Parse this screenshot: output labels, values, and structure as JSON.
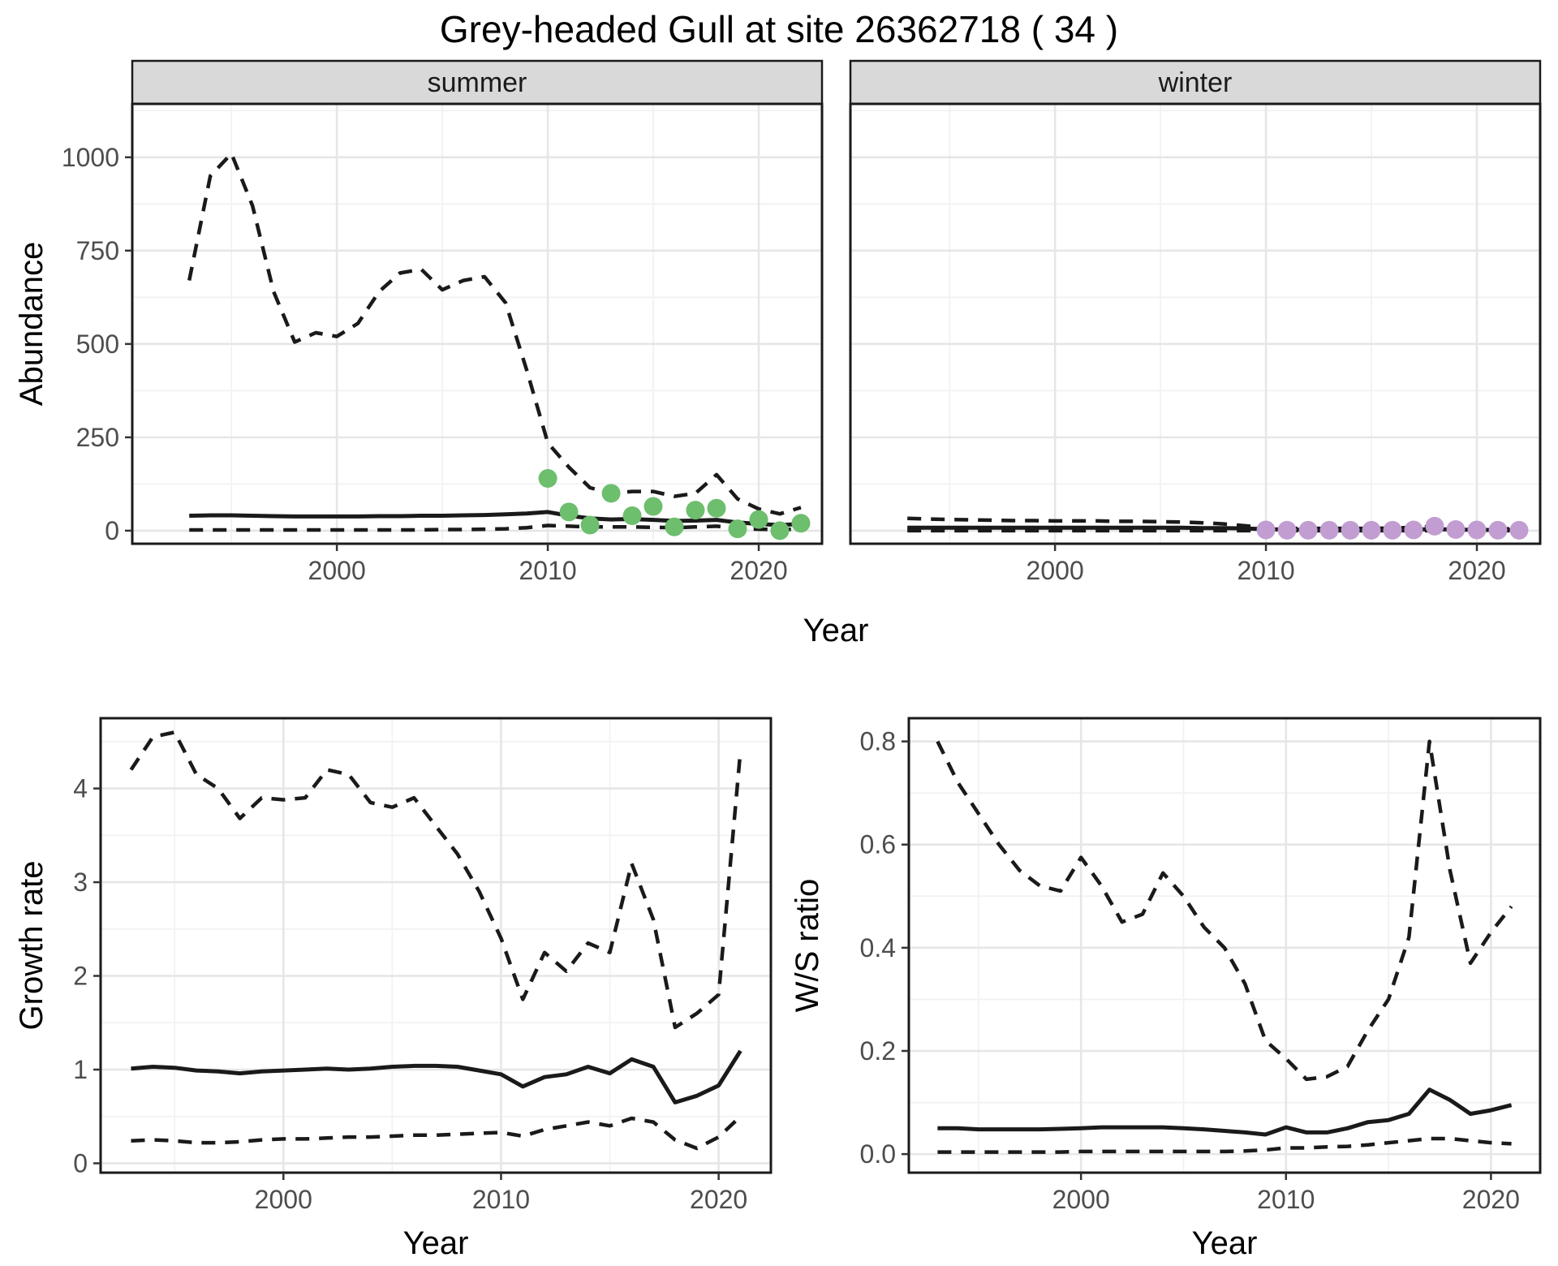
{
  "title": "Grey-headed Gull at site 26362718 ( 34 )",
  "labels": {
    "y_top": "Abundance",
    "x_top": "Year",
    "y_bottom_left": "Growth rate",
    "x_bottom_left": "Year",
    "y_bottom_right": "W/S ratio",
    "x_bottom_right": "Year"
  },
  "facets": {
    "summer": "summer",
    "winter": "winter"
  },
  "colors": {
    "summer_point": "#6dbe6d",
    "winter_point": "#c19dd1",
    "line": "#1a1a1a",
    "strip_fill": "#d9d9d9",
    "grid_major": "#e6e6e6",
    "grid_minor": "#f2f2f2",
    "axis_text": "#4d4d4d",
    "panel_border": "#1a1a1a"
  },
  "chart_data": [
    {
      "id": "abundance-summer",
      "type": "line",
      "facet_label": "summer",
      "ylabel": "Abundance",
      "xlabel": "Year",
      "xlim": [
        1990.3,
        2023.0
      ],
      "ylim": [
        -35,
        1143
      ],
      "xticks": [
        2000,
        2010,
        2020
      ],
      "xtick_labels": [
        "2000",
        "2010",
        "2020"
      ],
      "yticks": [
        0,
        250,
        500,
        750,
        1000
      ],
      "ytick_labels": [
        "0",
        "250",
        "500",
        "750",
        "1000"
      ],
      "x": [
        1993,
        1994,
        1995,
        1996,
        1997,
        1998,
        1999,
        2000,
        2001,
        2002,
        2003,
        2004,
        2005,
        2006,
        2007,
        2008,
        2009,
        2010,
        2011,
        2012,
        2013,
        2014,
        2015,
        2016,
        2017,
        2018,
        2019,
        2020,
        2021,
        2022
      ],
      "series": [
        {
          "name": "upper-ci",
          "style": "dashed",
          "values": [
            670,
            950,
            1010,
            870,
            640,
            505,
            530,
            520,
            555,
            640,
            690,
            700,
            645,
            670,
            680,
            610,
            430,
            235,
            170,
            115,
            100,
            105,
            105,
            92,
            100,
            150,
            85,
            58,
            45,
            62
          ]
        },
        {
          "name": "mean",
          "style": "solid",
          "values": [
            40,
            41,
            41,
            40,
            39,
            38,
            38,
            38,
            38,
            39,
            39,
            40,
            40,
            41,
            42,
            44,
            46,
            50,
            40,
            33,
            30,
            31,
            29,
            26,
            27,
            29,
            22,
            18,
            15,
            18
          ]
        },
        {
          "name": "lower-ci",
          "style": "dashed",
          "values": [
            2,
            2,
            2,
            2,
            2,
            2,
            2,
            2,
            2,
            2,
            2,
            2,
            3,
            3,
            4,
            5,
            8,
            14,
            12,
            10,
            10,
            10,
            9,
            8,
            10,
            12,
            6,
            4,
            3,
            4
          ]
        }
      ],
      "points": {
        "name": "observed-counts",
        "color_key": "summer_point",
        "x": [
          2010,
          2011,
          2012,
          2013,
          2014,
          2015,
          2016,
          2017,
          2018,
          2019,
          2020,
          2021,
          2022
        ],
        "values": [
          140,
          50,
          15,
          100,
          40,
          65,
          10,
          55,
          60,
          5,
          30,
          0,
          20
        ]
      }
    },
    {
      "id": "abundance-winter",
      "type": "line",
      "facet_label": "winter",
      "ylabel": "Abundance",
      "xlabel": "Year",
      "xlim": [
        1990.3,
        2023.0
      ],
      "ylim": [
        -35,
        1143
      ],
      "xticks": [
        2000,
        2010,
        2020
      ],
      "xtick_labels": [
        "2000",
        "2010",
        "2020"
      ],
      "yticks": [
        0,
        250,
        500,
        750,
        1000
      ],
      "ytick_labels": [
        "0",
        "250",
        "500",
        "750",
        "1000"
      ],
      "x": [
        1993,
        1994,
        1995,
        1996,
        1997,
        1998,
        1999,
        2000,
        2001,
        2002,
        2003,
        2004,
        2005,
        2006,
        2007,
        2008,
        2009,
        2010,
        2011,
        2012,
        2013,
        2014,
        2015,
        2016,
        2017,
        2018,
        2019,
        2020,
        2021,
        2022
      ],
      "series": [
        {
          "name": "upper-ci",
          "style": "dashed",
          "values": [
            33,
            31,
            30,
            29,
            28,
            27,
            27,
            26,
            26,
            26,
            25,
            25,
            24,
            23,
            21,
            18,
            13,
            8,
            6,
            6,
            6,
            6,
            6,
            7,
            9,
            11,
            8,
            6,
            5,
            5
          ]
        },
        {
          "name": "mean",
          "style": "solid",
          "values": [
            8,
            8,
            8,
            8,
            8,
            8,
            8,
            8,
            8,
            8,
            8,
            8,
            8,
            8,
            7,
            7,
            6,
            4,
            3,
            2,
            2,
            2,
            2,
            2,
            3,
            4,
            3,
            2,
            2,
            2
          ]
        },
        {
          "name": "lower-ci",
          "style": "dashed",
          "values": [
            0,
            0,
            0,
            0,
            0,
            0,
            0,
            0,
            0,
            0,
            0,
            0,
            0,
            0,
            0,
            0,
            0,
            0,
            0,
            0,
            0,
            0,
            0,
            0,
            0,
            0,
            0,
            0,
            0,
            0
          ]
        }
      ],
      "points": {
        "name": "observed-counts",
        "color_key": "winter_point",
        "x": [
          2010,
          2011,
          2012,
          2013,
          2014,
          2015,
          2016,
          2017,
          2018,
          2019,
          2020,
          2021,
          2022
        ],
        "values": [
          2,
          1,
          1,
          1,
          1,
          1,
          1,
          2,
          12,
          3,
          2,
          1,
          1
        ]
      }
    },
    {
      "id": "growth-rate",
      "type": "line",
      "ylabel": "Growth rate",
      "xlabel": "Year",
      "xlim": [
        1991.6,
        2022.4
      ],
      "ylim": [
        -0.1,
        4.75
      ],
      "xticks": [
        2000,
        2010,
        2020
      ],
      "xtick_labels": [
        "2000",
        "2010",
        "2020"
      ],
      "yticks": [
        0,
        1,
        2,
        3,
        4
      ],
      "ytick_labels": [
        "0",
        "1",
        "2",
        "3",
        "4"
      ],
      "x": [
        1993,
        1994,
        1995,
        1996,
        1997,
        1998,
        1999,
        2000,
        2001,
        2002,
        2003,
        2004,
        2005,
        2006,
        2007,
        2008,
        2009,
        2010,
        2011,
        2012,
        2013,
        2014,
        2015,
        2016,
        2017,
        2018,
        2019,
        2020,
        2021
      ],
      "series": [
        {
          "name": "upper-ci",
          "style": "dashed",
          "values": [
            4.2,
            4.55,
            4.6,
            4.15,
            4.0,
            3.68,
            3.9,
            3.88,
            3.9,
            4.2,
            4.15,
            3.85,
            3.8,
            3.9,
            3.6,
            3.3,
            2.9,
            2.4,
            1.75,
            2.25,
            2.05,
            2.35,
            2.25,
            3.2,
            2.6,
            1.45,
            1.6,
            1.8,
            4.4
          ]
        },
        {
          "name": "mean",
          "style": "solid",
          "values": [
            1.01,
            1.03,
            1.02,
            0.99,
            0.98,
            0.96,
            0.98,
            0.99,
            1.0,
            1.01,
            1.0,
            1.01,
            1.03,
            1.04,
            1.04,
            1.03,
            0.99,
            0.95,
            0.82,
            0.92,
            0.95,
            1.03,
            0.96,
            1.11,
            1.03,
            0.65,
            0.72,
            0.83,
            1.2
          ]
        },
        {
          "name": "lower-ci",
          "style": "dashed",
          "values": [
            0.24,
            0.25,
            0.24,
            0.22,
            0.22,
            0.23,
            0.25,
            0.26,
            0.26,
            0.27,
            0.28,
            0.28,
            0.29,
            0.3,
            0.3,
            0.31,
            0.32,
            0.33,
            0.29,
            0.36,
            0.4,
            0.44,
            0.4,
            0.48,
            0.44,
            0.25,
            0.16,
            0.28,
            0.5
          ]
        }
      ]
    },
    {
      "id": "ws-ratio",
      "type": "line",
      "ylabel": "W/S ratio",
      "xlabel": "Year",
      "xlim": [
        1991.6,
        2022.4
      ],
      "ylim": [
        -0.036,
        0.845
      ],
      "xticks": [
        2000,
        2010,
        2020
      ],
      "xtick_labels": [
        "2000",
        "2010",
        "2020"
      ],
      "yticks": [
        0.0,
        0.2,
        0.4,
        0.6,
        0.8
      ],
      "ytick_labels": [
        "0.0",
        "0.2",
        "0.4",
        "0.6",
        "0.8"
      ],
      "x": [
        1993,
        1994,
        1995,
        1996,
        1997,
        1998,
        1999,
        2000,
        2001,
        2002,
        2003,
        2004,
        2005,
        2006,
        2007,
        2008,
        2009,
        2010,
        2011,
        2012,
        2013,
        2014,
        2015,
        2016,
        2017,
        2018,
        2019,
        2020,
        2021
      ],
      "series": [
        {
          "name": "upper-ci",
          "style": "dashed",
          "values": [
            0.8,
            0.72,
            0.66,
            0.6,
            0.55,
            0.52,
            0.51,
            0.575,
            0.52,
            0.45,
            0.465,
            0.545,
            0.5,
            0.44,
            0.4,
            0.33,
            0.22,
            0.185,
            0.145,
            0.15,
            0.17,
            0.24,
            0.3,
            0.42,
            0.8,
            0.55,
            0.37,
            0.43,
            0.48
          ]
        },
        {
          "name": "mean",
          "style": "solid",
          "values": [
            0.05,
            0.05,
            0.048,
            0.048,
            0.048,
            0.048,
            0.049,
            0.05,
            0.052,
            0.052,
            0.052,
            0.052,
            0.05,
            0.048,
            0.045,
            0.042,
            0.038,
            0.052,
            0.042,
            0.042,
            0.05,
            0.062,
            0.066,
            0.078,
            0.125,
            0.105,
            0.078,
            0.085,
            0.095
          ]
        },
        {
          "name": "lower-ci",
          "style": "dashed",
          "values": [
            0.004,
            0.004,
            0.004,
            0.004,
            0.004,
            0.004,
            0.004,
            0.005,
            0.005,
            0.005,
            0.005,
            0.005,
            0.005,
            0.005,
            0.005,
            0.006,
            0.008,
            0.012,
            0.012,
            0.014,
            0.015,
            0.018,
            0.022,
            0.026,
            0.03,
            0.03,
            0.026,
            0.022,
            0.02
          ]
        }
      ]
    }
  ]
}
